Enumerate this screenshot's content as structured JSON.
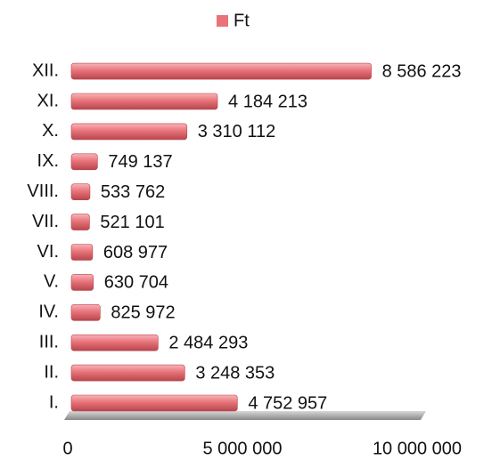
{
  "chart_data": {
    "type": "bar",
    "orientation": "horizontal",
    "categories": [
      "I.",
      "II.",
      "III.",
      "IV.",
      "V.",
      "VI.",
      "VII.",
      "VIII.",
      "IX.",
      "X.",
      "XI.",
      "XII."
    ],
    "series": [
      {
        "name": "Ft",
        "color": "#e8737a",
        "values": [
          4752957,
          3248353,
          2484293,
          825972,
          630704,
          608977,
          521101,
          533762,
          749137,
          3310112,
          4184213,
          8586223
        ],
        "value_labels": [
          "4 752 957",
          "3 248 353",
          "2 484 293",
          "825 972",
          "630 704",
          "608 977",
          "521 101",
          "533 762",
          "749 137",
          "3 310 112",
          "4 184 213",
          "8 586 223"
        ]
      }
    ],
    "xlim": [
      0,
      10000000
    ],
    "xticks": [
      0,
      {
        "value": 5000000,
        "label": "5 000 000"
      },
      {
        "value": 10000000,
        "label": "10 000 000"
      }
    ],
    "legend": "top"
  }
}
